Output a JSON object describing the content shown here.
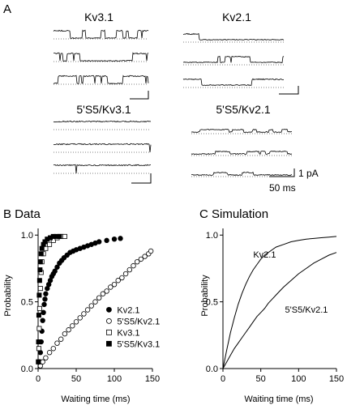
{
  "panel_a": {
    "letter": "A",
    "traces": [
      {
        "label": "Kv3.1",
        "style": "dense"
      },
      {
        "label": "Kv2.1",
        "style": "bursty"
      },
      {
        "label": "5'S5/Kv3.1",
        "style": "sparse"
      },
      {
        "label": "5'S5/Kv2.1",
        "style": "quiet"
      }
    ],
    "scale": {
      "current": "1 pA",
      "time": "50 ms"
    }
  },
  "chart_data": [
    {
      "type": "scatter",
      "title": "B Data",
      "xlabel": "Waiting time (ms)",
      "ylabel": "Probability",
      "xlim": [
        0,
        150
      ],
      "ylim": [
        0,
        1.05
      ],
      "xticks": [
        "0",
        "50",
        "100",
        "150"
      ],
      "yticks": [
        "0.0",
        "0.5",
        "1.0"
      ],
      "legend_position": "bottom-right",
      "series": [
        {
          "name": "Kv2.1",
          "marker": "filled-circle",
          "x": [
            2,
            3,
            4,
            5,
            6,
            7,
            8,
            9,
            10,
            12,
            14,
            16,
            18,
            20,
            22,
            25,
            28,
            31,
            34,
            38,
            42,
            46,
            50,
            55,
            60,
            65,
            70,
            75,
            80,
            90,
            100,
            108
          ],
          "y": [
            0.05,
            0.12,
            0.2,
            0.28,
            0.36,
            0.42,
            0.48,
            0.52,
            0.56,
            0.6,
            0.63,
            0.66,
            0.69,
            0.71,
            0.73,
            0.76,
            0.79,
            0.81,
            0.83,
            0.85,
            0.87,
            0.88,
            0.89,
            0.9,
            0.91,
            0.92,
            0.93,
            0.94,
            0.95,
            0.96,
            0.97,
            0.975
          ]
        },
        {
          "name": "5'S5/Kv2.1",
          "marker": "open-circle",
          "x": [
            3,
            6,
            10,
            15,
            20,
            25,
            30,
            35,
            40,
            45,
            50,
            55,
            60,
            65,
            70,
            75,
            80,
            85,
            90,
            95,
            100,
            105,
            110,
            115,
            120,
            125,
            130,
            135,
            140,
            145,
            148
          ],
          "y": [
            0.02,
            0.05,
            0.08,
            0.12,
            0.15,
            0.19,
            0.22,
            0.26,
            0.29,
            0.32,
            0.35,
            0.38,
            0.41,
            0.44,
            0.47,
            0.5,
            0.53,
            0.56,
            0.58,
            0.61,
            0.63,
            0.66,
            0.68,
            0.71,
            0.74,
            0.77,
            0.8,
            0.82,
            0.84,
            0.86,
            0.88
          ]
        },
        {
          "name": "Kv3.1",
          "marker": "open-square",
          "x": [
            0.5,
            1,
            1.5,
            2,
            3,
            4,
            5,
            7,
            10,
            15,
            20,
            25,
            30,
            35
          ],
          "y": [
            0.05,
            0.15,
            0.3,
            0.45,
            0.6,
            0.72,
            0.8,
            0.86,
            0.9,
            0.93,
            0.96,
            0.98,
            0.99,
            0.99
          ]
        },
        {
          "name": "5'S5/Kv3.1",
          "marker": "filled-square",
          "x": [
            0.3,
            0.6,
            1,
            1.5,
            2,
            2.5,
            3,
            4,
            5,
            7,
            9,
            12,
            16,
            20,
            24,
            28
          ],
          "y": [
            0.05,
            0.2,
            0.4,
            0.55,
            0.66,
            0.74,
            0.8,
            0.86,
            0.9,
            0.93,
            0.95,
            0.97,
            0.98,
            0.99,
            0.99,
            0.99
          ]
        }
      ]
    },
    {
      "type": "line",
      "title": "C Simulation",
      "xlabel": "Waiting time (ms)",
      "ylabel": "Probability",
      "xlim": [
        0,
        150
      ],
      "ylim": [
        0,
        1.05
      ],
      "xticks": [
        "0",
        "50",
        "100",
        "150"
      ],
      "yticks": [
        "0.0",
        "0.5",
        "1.0"
      ],
      "series": [
        {
          "name": "Kv2.1",
          "x": [
            0,
            5,
            10,
            15,
            20,
            25,
            30,
            35,
            40,
            45,
            50,
            55,
            60,
            65,
            70,
            80,
            90,
            100,
            110,
            120,
            130,
            140,
            150
          ],
          "y": [
            0,
            0.14,
            0.27,
            0.38,
            0.48,
            0.56,
            0.63,
            0.69,
            0.74,
            0.78,
            0.82,
            0.85,
            0.87,
            0.89,
            0.91,
            0.93,
            0.95,
            0.96,
            0.97,
            0.975,
            0.98,
            0.985,
            0.99
          ]
        },
        {
          "name": "5'S5/Kv2.1",
          "x": [
            0,
            5,
            10,
            15,
            20,
            25,
            30,
            35,
            40,
            45,
            50,
            55,
            60,
            65,
            70,
            75,
            80,
            90,
            100,
            110,
            120,
            130,
            140,
            150
          ],
          "y": [
            0,
            0.05,
            0.1,
            0.15,
            0.19,
            0.23,
            0.27,
            0.31,
            0.35,
            0.39,
            0.42,
            0.45,
            0.49,
            0.52,
            0.55,
            0.58,
            0.61,
            0.66,
            0.71,
            0.75,
            0.79,
            0.82,
            0.85,
            0.87
          ]
        }
      ],
      "annotations": [
        "Kv2.1",
        "5'S5/Kv2.1"
      ]
    }
  ]
}
